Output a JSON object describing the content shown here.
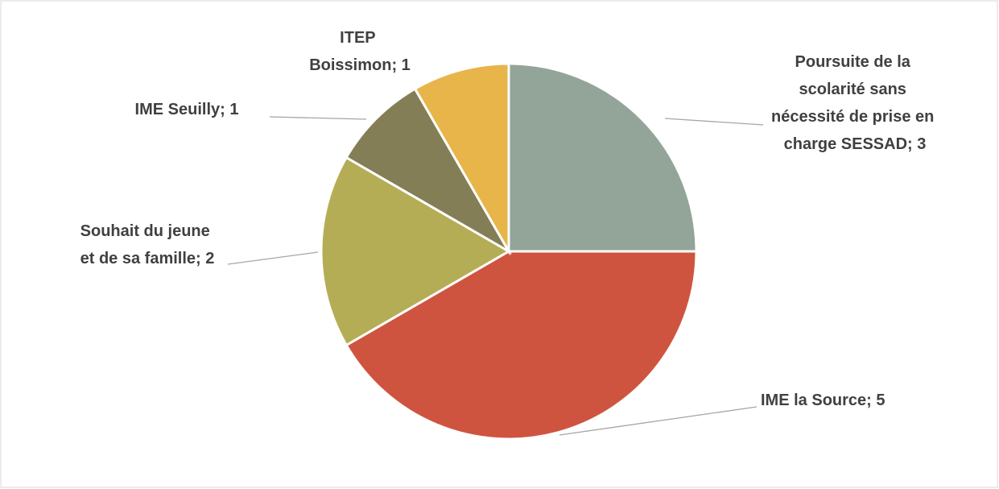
{
  "chart_data": {
    "type": "pie",
    "values": [
      3,
      5,
      2,
      1,
      1
    ],
    "value_labels": [
      "Poursuite de la scolarité sans nécessité de prise en charge SESSAD; 3",
      "IME la Source; 5",
      "Souhait du jeune et de sa famille; 2",
      "IME Seuilly; 1",
      "ITEP Boissimon; 1"
    ],
    "colors": [
      "#93a499",
      "#cf543f",
      "#b5ad55",
      "#847e57",
      "#e8b54a"
    ]
  }
}
